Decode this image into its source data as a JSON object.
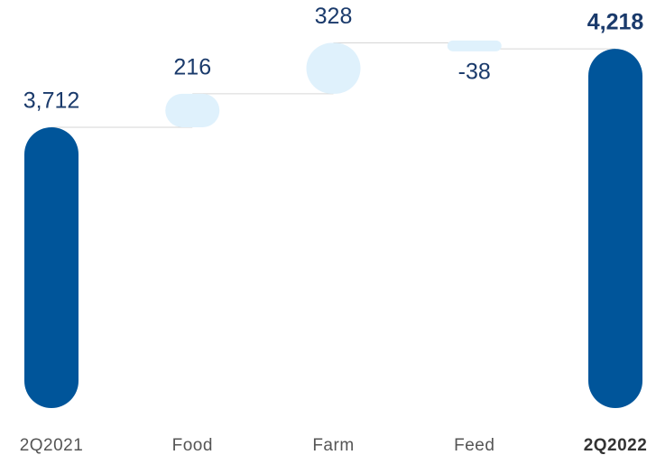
{
  "chart_data": {
    "type": "waterfall",
    "categories": [
      "2Q2021",
      "Food",
      "Farm",
      "Feed",
      "2Q2022"
    ],
    "values": [
      3712,
      216,
      328,
      -38,
      4218
    ],
    "value_labels": [
      "3,712",
      "216",
      "328",
      "-38",
      "4,218"
    ],
    "measure": [
      "absolute",
      "relative",
      "relative",
      "relative",
      "total"
    ],
    "colors": {
      "absolute": "#00559a",
      "relative": "#dff1fc",
      "total": "#00559a"
    },
    "ylim": [
      1900,
      4300
    ]
  }
}
